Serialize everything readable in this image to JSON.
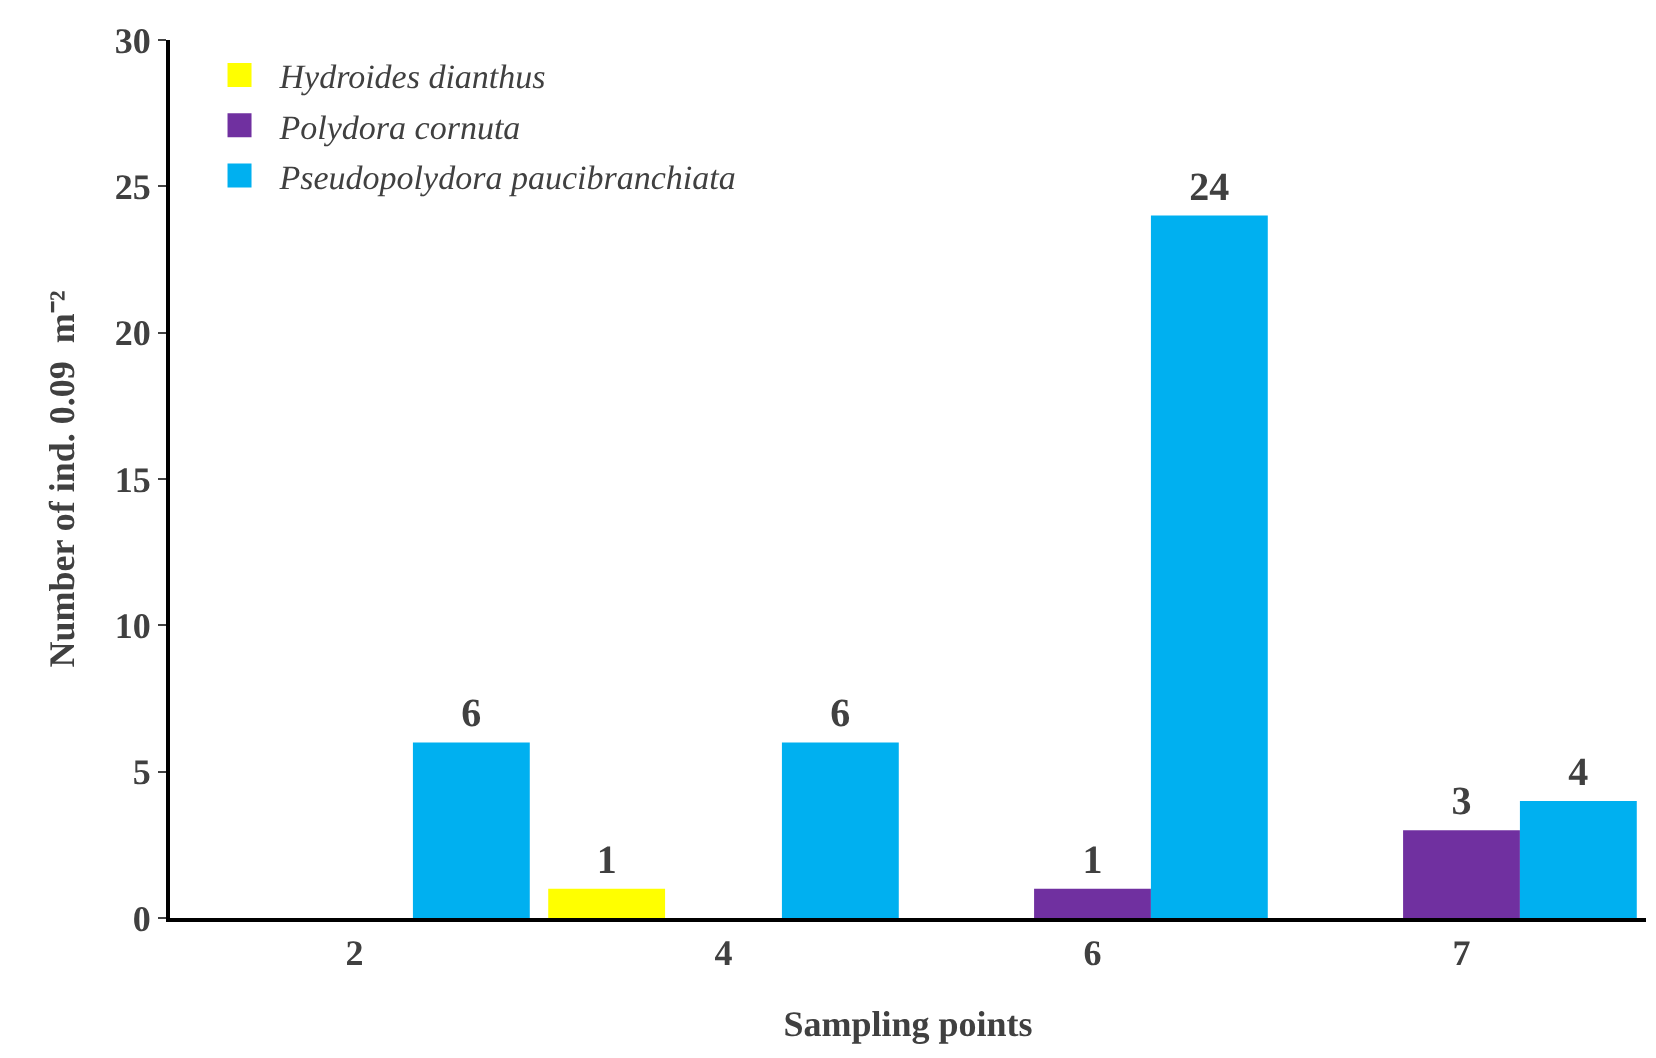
{
  "chart_data": {
    "type": "bar",
    "xlabel": "Sampling points",
    "ylabel": "Number of ind. 0.09  m⁻²",
    "categories": [
      "2",
      "4",
      "6",
      "7"
    ],
    "series": [
      {
        "name": "Hydroides dianthus",
        "color": "#ffff00",
        "values": [
          null,
          1,
          null,
          null
        ]
      },
      {
        "name": "Polydora cornuta",
        "color": "#7030a0",
        "values": [
          null,
          null,
          1,
          3
        ]
      },
      {
        "name": "Pseudopolydora paucibranchiata",
        "color": "#00b0f0",
        "values": [
          6,
          6,
          24,
          4
        ]
      }
    ],
    "ylim": [
      0,
      30
    ],
    "yticks": [
      0,
      5,
      10,
      15,
      20,
      25,
      30
    ],
    "grid": false,
    "legend": "top left",
    "data_labels": true
  }
}
